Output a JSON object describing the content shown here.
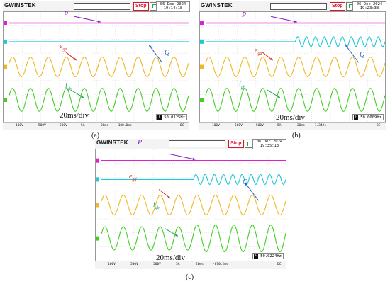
{
  "panels": [
    {
      "id": "a",
      "brand": "GWINSTEK",
      "stop": "Stop",
      "date": "06 Dec 2024",
      "time": "19:14:18",
      "timediv": "20ms/div",
      "caption": "(a)",
      "footer": {
        "ch1": "100V",
        "ch2": "500V",
        "ch3": "500V",
        "ch4": "5A",
        "timebase": "20ms",
        "position": "-100.0ms",
        "freq": "50.0125Hz",
        "coupling": "DC"
      },
      "labels": {
        "P": "P",
        "Q": "Q",
        "e": "e",
        "e_sub": "gd",
        "i": "i",
        "i_sub": "gb"
      }
    },
    {
      "id": "b",
      "brand": "GWINSTEK",
      "stop": "Stop",
      "date": "06 Dec 2024",
      "time": "19:23:38",
      "timediv": "20ms/div",
      "caption": "(b)",
      "footer": {
        "ch1": "100V",
        "ch2": "500V",
        "ch3": "500V",
        "ch4": "5A",
        "timebase": "20ms",
        "position": "-1.342s",
        "freq": "50.0009Hz",
        "coupling": "DC"
      },
      "labels": {
        "P": "P",
        "Q": "Q",
        "e": "e",
        "e_sub": "gd",
        "i": "i",
        "i_sub": "gb"
      }
    },
    {
      "id": "c",
      "brand": "GWINSTEK",
      "stop": "Stop",
      "date": "06 Dec 2024",
      "time": "19:35:13",
      "timediv": "20ms/div",
      "caption": "(c)",
      "footer": {
        "ch1": "100V",
        "ch2": "500V",
        "ch3": "500V",
        "ch4": "5A",
        "timebase": "20ms",
        "position": "-870.2ms",
        "freq": "50.0224Hz",
        "coupling": "DC"
      },
      "labels": {
        "P": "P",
        "Q": "Q",
        "e": "e",
        "e_sub": "gd",
        "i": "i",
        "i_sub": "gb"
      }
    }
  ],
  "colors": {
    "P": "#e020d0",
    "Q": "#20c8d8",
    "e": "#f0b820",
    "i": "#40d020",
    "arrowP": "#8020c0",
    "arrowQ": "#2060c0",
    "arrowE": "#d03020",
    "arrowI": "#20a060",
    "stop": "#d9132a"
  },
  "chart_data": [
    {
      "type": "line",
      "panel": "a",
      "time_per_div_ms": 20,
      "series": [
        {
          "name": "P",
          "shape": "flat"
        },
        {
          "name": "Q",
          "shape": "flat"
        },
        {
          "name": "e_gd",
          "shape": "sine",
          "cycles": 10,
          "frequency_hz": 50.0125
        },
        {
          "name": "i_gb",
          "shape": "sine",
          "cycles": 10,
          "frequency_hz": 50.0125
        }
      ]
    },
    {
      "type": "line",
      "panel": "b",
      "time_per_div_ms": 20,
      "series": [
        {
          "name": "P",
          "shape": "flat"
        },
        {
          "name": "Q",
          "shape": "flat-then-ripple",
          "step_at_fraction": 0.5
        },
        {
          "name": "e_gd",
          "shape": "sine",
          "cycles": 10,
          "frequency_hz": 50.0009
        },
        {
          "name": "i_gb",
          "shape": "sine",
          "cycles": 10,
          "frequency_hz": 50.0009
        }
      ]
    },
    {
      "type": "line",
      "panel": "c",
      "time_per_div_ms": 20,
      "series": [
        {
          "name": "P",
          "shape": "flat"
        },
        {
          "name": "Q",
          "shape": "flat-then-ripple",
          "step_at_fraction": 0.5
        },
        {
          "name": "e_gd",
          "shape": "sine",
          "cycles": 10,
          "frequency_hz": 50.0224
        },
        {
          "name": "i_gb",
          "shape": "sine",
          "cycles": 10,
          "frequency_hz": 50.0224,
          "amplitude_step_at_fraction": 0.5
        }
      ]
    }
  ]
}
